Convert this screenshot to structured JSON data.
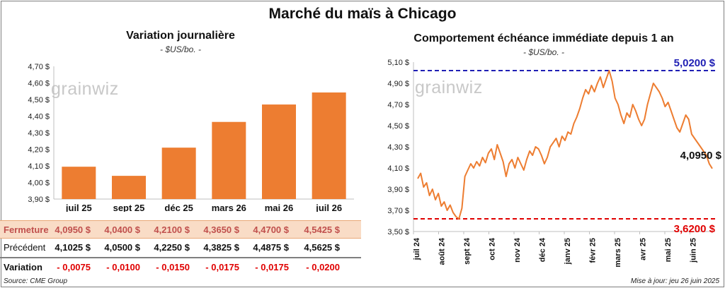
{
  "title": "Marché du maïs à Chicago",
  "brand": "grainwiz",
  "left": {
    "title": "Variation journalière",
    "unit": "- $US/bo. -"
  },
  "right": {
    "title": "Comportement échéance immédiate depuis 1 an",
    "unit": "- $US/bo. -"
  },
  "table": {
    "labels": [
      "Fermeture",
      "Précédent",
      "Variation"
    ],
    "close": [
      "4,0950 $",
      "4,0400 $",
      "4,2100 $",
      "4,3650 $",
      "4,4700 $",
      "4,5425 $"
    ],
    "previous": [
      "4,1025 $",
      "4,0500 $",
      "4,2250 $",
      "4,3825 $",
      "4,4875 $",
      "4,5625 $"
    ],
    "variation": [
      "- 0,0075",
      "- 0,0100",
      "- 0,0150",
      "- 0,0175",
      "- 0,0175",
      "- 0,0200"
    ]
  },
  "footer": {
    "source": "Source: CME Group",
    "updated": "Mise à jour: jeu 26 juin 2025"
  },
  "colors": {
    "bar": "#ed7d31",
    "max_line": "#1f1fb4",
    "min_line": "#e00000",
    "price_line": "#ed7d31"
  },
  "chart_data": [
    {
      "type": "bar",
      "title": "Variation journalière",
      "categories": [
        "juil 25",
        "sept 25",
        "déc 25",
        "mars 26",
        "mai 26",
        "juil 26"
      ],
      "values": [
        4.095,
        4.04,
        4.21,
        4.365,
        4.47,
        4.5425
      ],
      "ylim": [
        3.9,
        4.7
      ],
      "yticks": [
        "3,90 $",
        "4,00 $",
        "4,10 $",
        "4,20 $",
        "4,30 $",
        "4,40 $",
        "4,50 $",
        "4,60 $",
        "4,70 $"
      ],
      "grid": false
    },
    {
      "type": "line",
      "title": "Comportement échéance immédiate depuis 1 an",
      "x_labels": [
        "juil 24",
        "août 24",
        "sept 24",
        "oct 24",
        "nov 24",
        "déc 24",
        "janv 25",
        "févr 25",
        "mars 25",
        "avr 25",
        "mai 25",
        "juin 25"
      ],
      "ylim": [
        3.5,
        5.1
      ],
      "yticks": [
        "3,50 $",
        "3,70 $",
        "3,90 $",
        "4,10 $",
        "4,30 $",
        "4,50 $",
        "4,70 $",
        "4,90 $",
        "5,10 $"
      ],
      "max_label": "5,0200 $",
      "max_value": 5.02,
      "min_label": "3,6200 $",
      "min_value": 3.62,
      "last_label": "4,0950 $",
      "last_value": 4.095,
      "values": [
        4.0,
        4.05,
        3.92,
        3.96,
        3.84,
        3.9,
        3.8,
        3.86,
        3.74,
        3.78,
        3.7,
        3.75,
        3.68,
        3.64,
        3.62,
        3.72,
        4.02,
        4.08,
        4.14,
        4.1,
        4.16,
        4.12,
        4.2,
        4.15,
        4.24,
        4.28,
        4.18,
        4.32,
        4.24,
        4.16,
        4.02,
        4.14,
        4.18,
        4.1,
        4.2,
        4.14,
        4.08,
        4.18,
        4.26,
        4.22,
        4.3,
        4.28,
        4.22,
        4.14,
        4.2,
        4.3,
        4.34,
        4.38,
        4.3,
        4.4,
        4.36,
        4.44,
        4.42,
        4.52,
        4.58,
        4.66,
        4.76,
        4.84,
        4.8,
        4.88,
        4.82,
        4.9,
        4.96,
        4.86,
        4.94,
        5.02,
        4.92,
        4.76,
        4.7,
        4.6,
        4.52,
        4.62,
        4.58,
        4.7,
        4.64,
        4.56,
        4.5,
        4.56,
        4.7,
        4.8,
        4.9,
        4.86,
        4.82,
        4.76,
        4.68,
        4.72,
        4.64,
        4.56,
        4.48,
        4.44,
        4.52,
        4.6,
        4.56,
        4.42,
        4.38,
        4.34,
        4.3,
        4.26,
        4.22,
        4.14,
        4.095
      ]
    }
  ]
}
